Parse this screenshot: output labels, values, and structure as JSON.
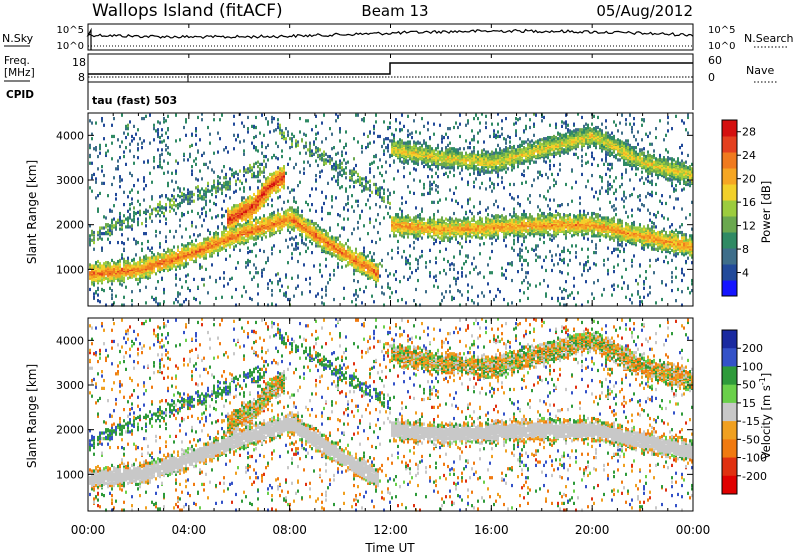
{
  "header": {
    "station": "Wallops Island (fitACF)",
    "beam": "Beam 13",
    "date": "05/Aug/2012"
  },
  "noise_panel": {
    "left_label": "N.Sky",
    "right_label": "N.Search",
    "left_ticks": [
      "10^5",
      "10^0"
    ],
    "right_ticks": [
      "10^5",
      "10^0"
    ]
  },
  "freq_panel": {
    "label_line1": "Freq.",
    "label_line2": "[MHz]",
    "cpid_label": "CPID",
    "left_ticks": [
      "18",
      "8"
    ],
    "right_label": "Nave",
    "right_ticks": [
      "60",
      "0"
    ],
    "cpid_text": "tau (fast) 503"
  },
  "chart_data": [
    {
      "type": "heatmap",
      "title": "",
      "xlabel": "Time UT",
      "ylabel": "Slant Range [km]",
      "x_ticks": [
        "00:00",
        "04:00",
        "08:00",
        "12:00",
        "16:00",
        "20:00",
        "00:00"
      ],
      "xlim_hours": [
        0,
        24
      ],
      "y_ticks": [
        1000,
        2000,
        3000,
        4000
      ],
      "ylim": [
        180,
        4500
      ],
      "colorbar": {
        "label": "Power [dB]",
        "ticks": [
          4,
          8,
          12,
          16,
          20,
          24,
          28
        ],
        "range": [
          0,
          30
        ],
        "colors": [
          "#1414ff",
          "#224a9a",
          "#3e6e8a",
          "#2f8a64",
          "#6aa84f",
          "#9ccc3e",
          "#f2d02a",
          "#f5a623",
          "#f07a1e",
          "#e4401f",
          "#d40f0f"
        ]
      },
      "features": [
        {
          "name": "lower band",
          "x": [
            0,
            2,
            4,
            6,
            8,
            10,
            11.5
          ],
          "y": [
            900,
            1000,
            1350,
            1800,
            2150,
            1400,
            900
          ],
          "level": 24
        },
        {
          "name": "rising patch",
          "x": [
            5.5,
            6.5,
            7.2,
            7.8
          ],
          "y": [
            2100,
            2400,
            2900,
            3100
          ],
          "level": 27
        },
        {
          "name": "midday band",
          "x": [
            12,
            14,
            16,
            18,
            20,
            22,
            24
          ],
          "y": [
            2000,
            1900,
            1950,
            2000,
            2000,
            1750,
            1500
          ],
          "level": 22
        },
        {
          "name": "upper arc",
          "x": [
            12,
            14,
            16,
            18,
            20,
            22,
            24
          ],
          "y": [
            3700,
            3500,
            3400,
            3700,
            4000,
            3400,
            3100
          ],
          "level": 18
        }
      ]
    },
    {
      "type": "heatmap",
      "title": "",
      "xlabel": "Time UT",
      "ylabel": "Slant Range [km]",
      "x_ticks": [
        "00:00",
        "04:00",
        "08:00",
        "12:00",
        "16:00",
        "20:00",
        "00:00"
      ],
      "xlim_hours": [
        0,
        24
      ],
      "y_ticks": [
        1000,
        2000,
        3000,
        4000
      ],
      "ylim": [
        180,
        4500
      ],
      "colorbar": {
        "label": "Velocity [m s^-1]",
        "ticks": [
          200,
          100,
          50,
          15,
          -15,
          -50,
          -100,
          -200
        ],
        "colors": [
          "#1a2aa0",
          "#3452c8",
          "#2e9a3a",
          "#6ad04a",
          "#c8c8c8",
          "#f0a020",
          "#f07a10",
          "#e03010",
          "#e00000"
        ]
      },
      "features": [
        {
          "name": "ground scatter lower band",
          "x": [
            0,
            2,
            4,
            6,
            8,
            10,
            11.5
          ],
          "y": [
            900,
            1000,
            1350,
            1800,
            2150,
            1400,
            900
          ],
          "velocity": 0
        },
        {
          "name": "ground scatter midday band",
          "x": [
            12,
            14,
            16,
            18,
            20,
            22,
            24
          ],
          "y": [
            2000,
            1900,
            1950,
            2000,
            2000,
            1750,
            1500
          ],
          "velocity": 0
        }
      ]
    }
  ]
}
